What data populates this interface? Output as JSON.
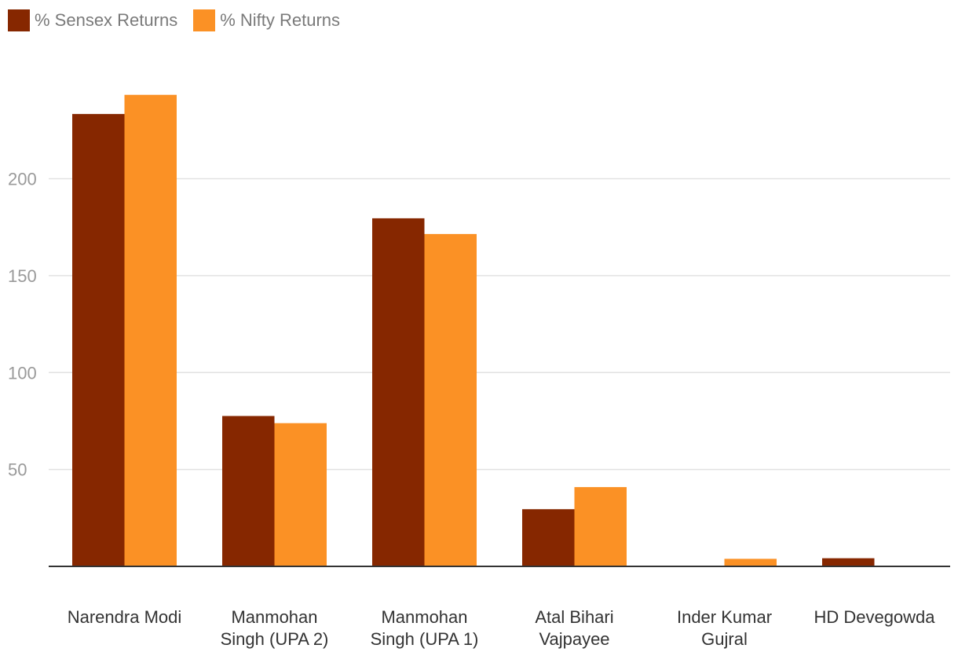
{
  "chart_data": {
    "type": "bar",
    "title": "",
    "xlabel": "",
    "ylabel": "",
    "categories": [
      [
        "Narendra Modi"
      ],
      [
        "Manmohan",
        "Singh (UPA 2)"
      ],
      [
        "Manmohan",
        "Singh (UPA 1)"
      ],
      [
        "Atal Bihari",
        "Vajpayee"
      ],
      [
        "Inder Kumar",
        "Gujral"
      ],
      [
        "HD Devegowda"
      ]
    ],
    "series": [
      {
        "name": "% Sensex Returns",
        "color": "#862700",
        "values": [
          233.4,
          77.6,
          179.6,
          29.5,
          0,
          4.2
        ]
      },
      {
        "name": "% Nifty Returns",
        "color": "#fb9125",
        "values": [
          243.3,
          73.9,
          171.5,
          40.9,
          3.9,
          0
        ]
      }
    ],
    "yticks": [
      50,
      100,
      150,
      200
    ],
    "ylim": [
      0,
      250
    ],
    "grid": true,
    "legend_position": "top-left"
  }
}
